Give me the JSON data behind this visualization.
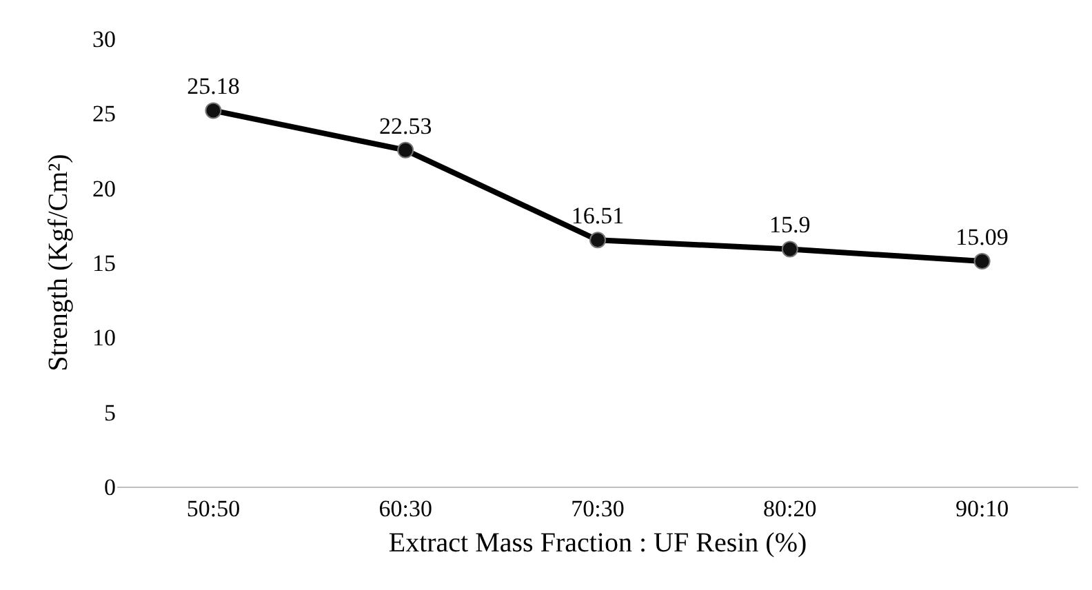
{
  "chart_data": {
    "type": "line",
    "xlabel": "Extract Mass Fraction : UF Resin (%)",
    "ylabel": "Strength (Kgf/Cm²)",
    "categories": [
      "50:50",
      "60:30",
      "70:30",
      "80:20",
      "90:10"
    ],
    "series": [
      {
        "color": "#000000",
        "values": [
          25.18,
          22.53,
          16.51,
          15.9,
          15.09
        ]
      }
    ],
    "ylim": [
      0,
      30
    ],
    "yticks": [
      0,
      5,
      10,
      15,
      20,
      25,
      30
    ],
    "legend": false,
    "marker": "circle",
    "line_style": "solid",
    "data_labels": true
  }
}
